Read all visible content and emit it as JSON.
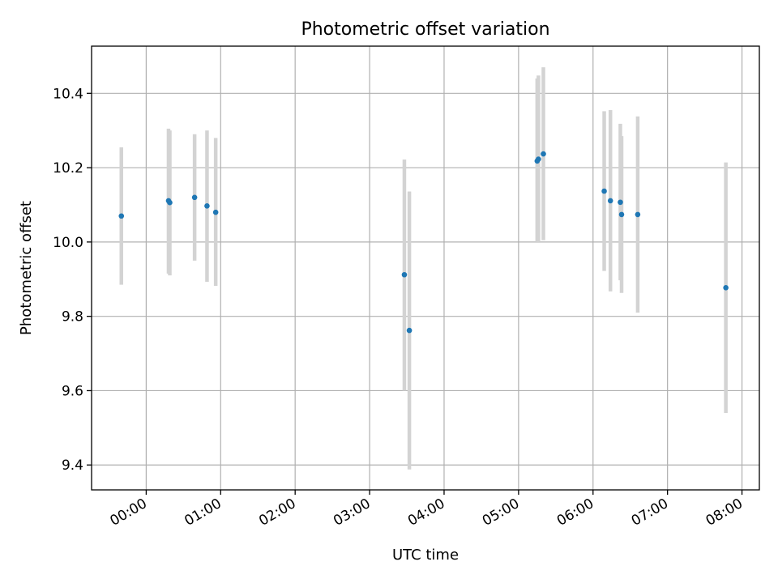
{
  "chart_data": {
    "type": "scatter",
    "title": "Photometric offset variation",
    "xlabel": "UTC time",
    "ylabel": "Photometric offset",
    "x_tick_labels": [
      "00:00",
      "01:00",
      "02:00",
      "03:00",
      "04:00",
      "05:00",
      "06:00",
      "07:00",
      "08:00"
    ],
    "y_tick_labels": [
      "9.4",
      "9.6",
      "9.8",
      "10.0",
      "10.2",
      "10.4"
    ],
    "y_ticks": [
      9.4,
      9.6,
      9.8,
      10.0,
      10.2,
      10.4
    ],
    "xlim": [
      "-00:44",
      "08:14"
    ],
    "ylim": [
      9.333,
      10.527
    ],
    "grid": true,
    "colors": {
      "point": "#1f77b4",
      "errorbar": "#d3d3d3"
    },
    "series": [
      {
        "points": [
          {
            "t": "-00:20",
            "y": 10.07,
            "lo": 9.885,
            "hi": 10.255
          },
          {
            "t": "00:18",
            "y": 10.111,
            "lo": 9.915,
            "hi": 10.305
          },
          {
            "t": "00:19",
            "y": 10.106,
            "lo": 9.91,
            "hi": 10.3
          },
          {
            "t": "00:39",
            "y": 10.12,
            "lo": 9.95,
            "hi": 10.29
          },
          {
            "t": "00:49",
            "y": 10.097,
            "lo": 9.893,
            "hi": 10.3
          },
          {
            "t": "00:56",
            "y": 10.08,
            "lo": 9.882,
            "hi": 10.28
          },
          {
            "t": "03:28",
            "y": 9.912,
            "lo": 9.6,
            "hi": 10.222
          },
          {
            "t": "03:32",
            "y": 9.762,
            "lo": 9.388,
            "hi": 10.136
          },
          {
            "t": "05:15",
            "y": 10.218,
            "lo": 10.0,
            "hi": 10.44
          },
          {
            "t": "05:16",
            "y": 10.223,
            "lo": 10.0,
            "hi": 10.448
          },
          {
            "t": "05:20",
            "y": 10.237,
            "lo": 10.005,
            "hi": 10.47
          },
          {
            "t": "06:09",
            "y": 10.137,
            "lo": 9.922,
            "hi": 10.352
          },
          {
            "t": "06:14",
            "y": 10.111,
            "lo": 9.867,
            "hi": 10.355
          },
          {
            "t": "06:22",
            "y": 10.107,
            "lo": 9.897,
            "hi": 10.318
          },
          {
            "t": "06:23",
            "y": 10.074,
            "lo": 9.863,
            "hi": 10.285
          },
          {
            "t": "06:36",
            "y": 10.074,
            "lo": 9.81,
            "hi": 10.338
          },
          {
            "t": "07:47",
            "y": 9.877,
            "lo": 9.54,
            "hi": 10.214
          }
        ]
      }
    ]
  }
}
